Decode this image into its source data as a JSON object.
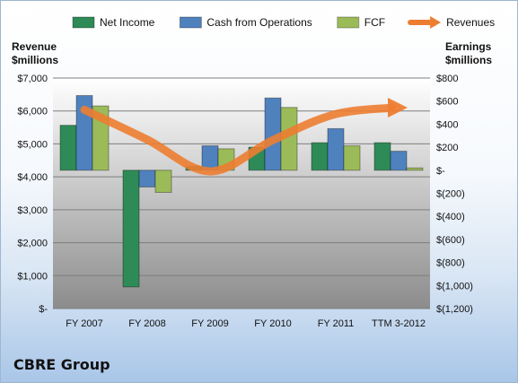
{
  "company_name": "CBRE Group",
  "chart_data": {
    "type": "bar",
    "categories": [
      "FY 2007",
      "FY 2008",
      "FY 2009",
      "FY 2010",
      "FY 2011",
      "TTM 3-2012"
    ],
    "series": [
      {
        "name": "Net Income",
        "axis": "right",
        "color": "#2e8b57",
        "values": [
          390,
          -1012,
          33,
          200,
          239,
          239
        ]
      },
      {
        "name": "Cash from Operations",
        "axis": "right",
        "color": "#4f81bd",
        "values": [
          648,
          -145,
          212,
          627,
          361,
          165
        ]
      },
      {
        "name": "FCF",
        "axis": "right",
        "color": "#9bbb59",
        "values": [
          558,
          -192,
          186,
          545,
          212,
          20
        ]
      },
      {
        "name": "Revenues",
        "axis": "left",
        "type": "line",
        "color": "#ed7d31",
        "values": [
          6036,
          5130,
          4165,
          5115,
          5905,
          6100
        ]
      }
    ],
    "left_axis": {
      "label_line1": "Revenue",
      "label_line2": "$millions",
      "min": 0,
      "max": 7000,
      "ticks": [
        7000,
        6000,
        5000,
        4000,
        3000,
        2000,
        1000,
        0
      ],
      "tick_labels": [
        "$7,000",
        "$6,000",
        "$5,000",
        "$4,000",
        "$3,000",
        "$2,000",
        "$1,000",
        "$-"
      ]
    },
    "right_axis": {
      "label_line1": "Earnings",
      "label_line2": "$millions",
      "min": -1200,
      "max": 800,
      "ticks": [
        800,
        600,
        400,
        200,
        0,
        -200,
        -400,
        -600,
        -800,
        -1000,
        -1200
      ],
      "tick_labels": [
        "$800",
        "$600",
        "$400",
        "$200",
        "$-",
        "$(200)",
        "$(400)",
        "$(600)",
        "$(800)",
        "$(1,000)",
        "$(1,200)"
      ]
    },
    "legend_position": "top",
    "grid": true
  }
}
